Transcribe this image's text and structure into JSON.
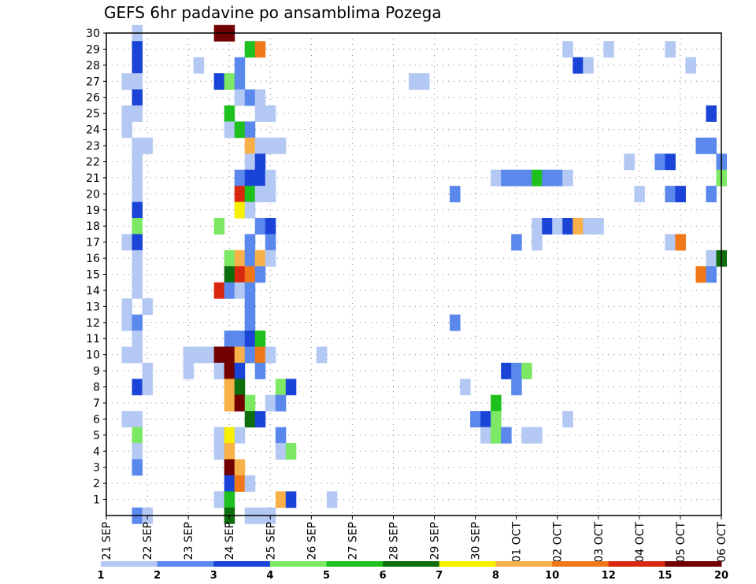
{
  "chart_data": {
    "type": "heatmap",
    "title": "GEFS 6hr padavine po ansamblima Pozega",
    "xlabel": "",
    "ylabel": "",
    "x_ticks": [
      "21 SEP",
      "22 SEP",
      "23 SEP",
      "24 SEP",
      "25 SEP",
      "26 SEP",
      "27 SEP",
      "28 SEP",
      "29 SEP",
      "30 SEP",
      "01 OCT",
      "02 OCT",
      "03 OCT",
      "04 OCT",
      "05 OCT",
      "06 OCT"
    ],
    "y_ticks": [
      1,
      2,
      3,
      4,
      5,
      6,
      7,
      8,
      9,
      10,
      11,
      12,
      13,
      14,
      15,
      16,
      17,
      18,
      19,
      20,
      21,
      22,
      23,
      24,
      25,
      26,
      27,
      28,
      29,
      30
    ],
    "x_unit": "6-hour step (4 steps per day, step 0 = 21 SEP)",
    "x_range": [
      0,
      60
    ],
    "y_range": [
      0,
      30
    ],
    "grid": "dotted",
    "legend": {
      "placement": "bottom",
      "thresholds": [
        "1",
        "2",
        "3",
        "4",
        "5",
        "6",
        "7",
        "8",
        "10",
        "12",
        "15",
        "20"
      ],
      "colors": [
        "#b4c8f4",
        "#5a88ec",
        "#1a44d8",
        "#7ce864",
        "#1ec01e",
        "#0c6e0c",
        "#f8f000",
        "#f8b048",
        "#f07818",
        "#d82810",
        "#720000"
      ]
    },
    "cells": [
      {
        "s": 3,
        "m": 30,
        "c": 0
      },
      {
        "s": 11,
        "m": 30,
        "c": 10
      },
      {
        "s": 12,
        "m": 30,
        "c": 10
      },
      {
        "s": 3,
        "m": 29,
        "c": 2
      },
      {
        "s": 14,
        "m": 29,
        "c": 4
      },
      {
        "s": 15,
        "m": 29,
        "c": 8
      },
      {
        "s": 45,
        "m": 29,
        "c": 0
      },
      {
        "s": 49,
        "m": 29,
        "c": 0
      },
      {
        "s": 55,
        "m": 29,
        "c": 0
      },
      {
        "s": 3,
        "m": 28,
        "c": 2
      },
      {
        "s": 9,
        "m": 28,
        "c": 0
      },
      {
        "s": 13,
        "m": 28,
        "c": 1
      },
      {
        "s": 46,
        "m": 28,
        "c": 2
      },
      {
        "s": 47,
        "m": 28,
        "c": 0
      },
      {
        "s": 57,
        "m": 28,
        "c": 0
      },
      {
        "s": 2,
        "m": 27,
        "c": 0
      },
      {
        "s": 3,
        "m": 27,
        "c": 0
      },
      {
        "s": 11,
        "m": 27,
        "c": 2
      },
      {
        "s": 12,
        "m": 27,
        "c": 3
      },
      {
        "s": 13,
        "m": 27,
        "c": 1
      },
      {
        "s": 30,
        "m": 27,
        "c": 0
      },
      {
        "s": 31,
        "m": 27,
        "c": 0
      },
      {
        "s": 3,
        "m": 26,
        "c": 2
      },
      {
        "s": 13,
        "m": 26,
        "c": 0
      },
      {
        "s": 14,
        "m": 26,
        "c": 1
      },
      {
        "s": 15,
        "m": 26,
        "c": 0
      },
      {
        "s": 2,
        "m": 25,
        "c": 0
      },
      {
        "s": 3,
        "m": 25,
        "c": 0
      },
      {
        "s": 12,
        "m": 25,
        "c": 4
      },
      {
        "s": 15,
        "m": 25,
        "c": 0
      },
      {
        "s": 16,
        "m": 25,
        "c": 0
      },
      {
        "s": 59,
        "m": 25,
        "c": 2
      },
      {
        "s": 2,
        "m": 24,
        "c": 0
      },
      {
        "s": 12,
        "m": 24,
        "c": 0
      },
      {
        "s": 13,
        "m": 24,
        "c": 4
      },
      {
        "s": 14,
        "m": 24,
        "c": 1
      },
      {
        "s": 3,
        "m": 23,
        "c": 0
      },
      {
        "s": 4,
        "m": 23,
        "c": 0
      },
      {
        "s": 14,
        "m": 23,
        "c": 7
      },
      {
        "s": 15,
        "m": 23,
        "c": 0
      },
      {
        "s": 16,
        "m": 23,
        "c": 0
      },
      {
        "s": 17,
        "m": 23,
        "c": 0
      },
      {
        "s": 58,
        "m": 23,
        "c": 1
      },
      {
        "s": 59,
        "m": 23,
        "c": 1
      },
      {
        "s": 3,
        "m": 22,
        "c": 0
      },
      {
        "s": 14,
        "m": 22,
        "c": 0
      },
      {
        "s": 15,
        "m": 22,
        "c": 2
      },
      {
        "s": 51,
        "m": 22,
        "c": 0
      },
      {
        "s": 54,
        "m": 22,
        "c": 1
      },
      {
        "s": 55,
        "m": 22,
        "c": 2
      },
      {
        "s": 60,
        "m": 22,
        "c": 1
      },
      {
        "s": 3,
        "m": 21,
        "c": 0
      },
      {
        "s": 13,
        "m": 21,
        "c": 1
      },
      {
        "s": 14,
        "m": 21,
        "c": 2
      },
      {
        "s": 15,
        "m": 21,
        "c": 2
      },
      {
        "s": 16,
        "m": 21,
        "c": 0
      },
      {
        "s": 38,
        "m": 21,
        "c": 0
      },
      {
        "s": 39,
        "m": 21,
        "c": 1
      },
      {
        "s": 40,
        "m": 21,
        "c": 1
      },
      {
        "s": 41,
        "m": 21,
        "c": 1
      },
      {
        "s": 42,
        "m": 21,
        "c": 4
      },
      {
        "s": 43,
        "m": 21,
        "c": 1
      },
      {
        "s": 44,
        "m": 21,
        "c": 1
      },
      {
        "s": 45,
        "m": 21,
        "c": 0
      },
      {
        "s": 60,
        "m": 21,
        "c": 3
      },
      {
        "s": 3,
        "m": 20,
        "c": 0
      },
      {
        "s": 13,
        "m": 20,
        "c": 9
      },
      {
        "s": 14,
        "m": 20,
        "c": 4
      },
      {
        "s": 15,
        "m": 20,
        "c": 0
      },
      {
        "s": 16,
        "m": 20,
        "c": 0
      },
      {
        "s": 34,
        "m": 20,
        "c": 1
      },
      {
        "s": 52,
        "m": 20,
        "c": 0
      },
      {
        "s": 55,
        "m": 20,
        "c": 1
      },
      {
        "s": 56,
        "m": 20,
        "c": 2
      },
      {
        "s": 59,
        "m": 20,
        "c": 1
      },
      {
        "s": 3,
        "m": 19,
        "c": 2
      },
      {
        "s": 13,
        "m": 19,
        "c": 6
      },
      {
        "s": 14,
        "m": 19,
        "c": 0
      },
      {
        "s": 3,
        "m": 18,
        "c": 3
      },
      {
        "s": 11,
        "m": 18,
        "c": 3
      },
      {
        "s": 15,
        "m": 18,
        "c": 1
      },
      {
        "s": 16,
        "m": 18,
        "c": 2
      },
      {
        "s": 42,
        "m": 18,
        "c": 0
      },
      {
        "s": 43,
        "m": 18,
        "c": 2
      },
      {
        "s": 44,
        "m": 18,
        "c": 0
      },
      {
        "s": 45,
        "m": 18,
        "c": 2
      },
      {
        "s": 46,
        "m": 18,
        "c": 7
      },
      {
        "s": 47,
        "m": 18,
        "c": 0
      },
      {
        "s": 48,
        "m": 18,
        "c": 0
      },
      {
        "s": 2,
        "m": 17,
        "c": 0
      },
      {
        "s": 3,
        "m": 17,
        "c": 2
      },
      {
        "s": 14,
        "m": 17,
        "c": 1
      },
      {
        "s": 16,
        "m": 17,
        "c": 1
      },
      {
        "s": 40,
        "m": 17,
        "c": 1
      },
      {
        "s": 42,
        "m": 17,
        "c": 0
      },
      {
        "s": 55,
        "m": 17,
        "c": 0
      },
      {
        "s": 56,
        "m": 17,
        "c": 8
      },
      {
        "s": 3,
        "m": 16,
        "c": 0
      },
      {
        "s": 12,
        "m": 16,
        "c": 3
      },
      {
        "s": 13,
        "m": 16,
        "c": 7
      },
      {
        "s": 14,
        "m": 16,
        "c": 1
      },
      {
        "s": 15,
        "m": 16,
        "c": 7
      },
      {
        "s": 16,
        "m": 16,
        "c": 0
      },
      {
        "s": 59,
        "m": 16,
        "c": 0
      },
      {
        "s": 60,
        "m": 16,
        "c": 5
      },
      {
        "s": 3,
        "m": 15,
        "c": 0
      },
      {
        "s": 12,
        "m": 15,
        "c": 5
      },
      {
        "s": 13,
        "m": 15,
        "c": 9
      },
      {
        "s": 14,
        "m": 15,
        "c": 8
      },
      {
        "s": 15,
        "m": 15,
        "c": 1
      },
      {
        "s": 58,
        "m": 15,
        "c": 8
      },
      {
        "s": 59,
        "m": 15,
        "c": 1
      },
      {
        "s": 3,
        "m": 14,
        "c": 0
      },
      {
        "s": 11,
        "m": 14,
        "c": 9
      },
      {
        "s": 12,
        "m": 14,
        "c": 1
      },
      {
        "s": 13,
        "m": 14,
        "c": 0
      },
      {
        "s": 14,
        "m": 14,
        "c": 1
      },
      {
        "s": 2,
        "m": 13,
        "c": 0
      },
      {
        "s": 4,
        "m": 13,
        "c": 0
      },
      {
        "s": 14,
        "m": 13,
        "c": 1
      },
      {
        "s": 2,
        "m": 12,
        "c": 0
      },
      {
        "s": 3,
        "m": 12,
        "c": 1
      },
      {
        "s": 14,
        "m": 12,
        "c": 1
      },
      {
        "s": 34,
        "m": 12,
        "c": 1
      },
      {
        "s": 3,
        "m": 11,
        "c": 0
      },
      {
        "s": 12,
        "m": 11,
        "c": 1
      },
      {
        "s": 13,
        "m": 11,
        "c": 1
      },
      {
        "s": 14,
        "m": 11,
        "c": 2
      },
      {
        "s": 15,
        "m": 11,
        "c": 4
      },
      {
        "s": 2,
        "m": 10,
        "c": 0
      },
      {
        "s": 3,
        "m": 10,
        "c": 0
      },
      {
        "s": 8,
        "m": 10,
        "c": 0
      },
      {
        "s": 9,
        "m": 10,
        "c": 0
      },
      {
        "s": 10,
        "m": 10,
        "c": 0
      },
      {
        "s": 11,
        "m": 10,
        "c": 10
      },
      {
        "s": 12,
        "m": 10,
        "c": 10
      },
      {
        "s": 13,
        "m": 10,
        "c": 7
      },
      {
        "s": 14,
        "m": 10,
        "c": 1
      },
      {
        "s": 15,
        "m": 10,
        "c": 8
      },
      {
        "s": 16,
        "m": 10,
        "c": 0
      },
      {
        "s": 21,
        "m": 10,
        "c": 0
      },
      {
        "s": 4,
        "m": 9,
        "c": 0
      },
      {
        "s": 8,
        "m": 9,
        "c": 0
      },
      {
        "s": 11,
        "m": 9,
        "c": 0
      },
      {
        "s": 12,
        "m": 9,
        "c": 10
      },
      {
        "s": 13,
        "m": 9,
        "c": 2
      },
      {
        "s": 15,
        "m": 9,
        "c": 1
      },
      {
        "s": 39,
        "m": 9,
        "c": 2
      },
      {
        "s": 40,
        "m": 9,
        "c": 1
      },
      {
        "s": 41,
        "m": 9,
        "c": 3
      },
      {
        "s": 3,
        "m": 8,
        "c": 2
      },
      {
        "s": 4,
        "m": 8,
        "c": 0
      },
      {
        "s": 12,
        "m": 8,
        "c": 7
      },
      {
        "s": 13,
        "m": 8,
        "c": 5
      },
      {
        "s": 17,
        "m": 8,
        "c": 3
      },
      {
        "s": 18,
        "m": 8,
        "c": 2
      },
      {
        "s": 35,
        "m": 8,
        "c": 0
      },
      {
        "s": 40,
        "m": 8,
        "c": 1
      },
      {
        "s": 12,
        "m": 7,
        "c": 7
      },
      {
        "s": 13,
        "m": 7,
        "c": 10
      },
      {
        "s": 14,
        "m": 7,
        "c": 3
      },
      {
        "s": 16,
        "m": 7,
        "c": 0
      },
      {
        "s": 17,
        "m": 7,
        "c": 1
      },
      {
        "s": 38,
        "m": 7,
        "c": 4
      },
      {
        "s": 2,
        "m": 6,
        "c": 0
      },
      {
        "s": 3,
        "m": 6,
        "c": 0
      },
      {
        "s": 14,
        "m": 6,
        "c": 5
      },
      {
        "s": 15,
        "m": 6,
        "c": 2
      },
      {
        "s": 36,
        "m": 6,
        "c": 1
      },
      {
        "s": 37,
        "m": 6,
        "c": 2
      },
      {
        "s": 38,
        "m": 6,
        "c": 3
      },
      {
        "s": 45,
        "m": 6,
        "c": 0
      },
      {
        "s": 3,
        "m": 5,
        "c": 3
      },
      {
        "s": 11,
        "m": 5,
        "c": 0
      },
      {
        "s": 12,
        "m": 5,
        "c": 6
      },
      {
        "s": 13,
        "m": 5,
        "c": 0
      },
      {
        "s": 17,
        "m": 5,
        "c": 1
      },
      {
        "s": 37,
        "m": 5,
        "c": 0
      },
      {
        "s": 38,
        "m": 5,
        "c": 3
      },
      {
        "s": 39,
        "m": 5,
        "c": 1
      },
      {
        "s": 41,
        "m": 5,
        "c": 0
      },
      {
        "s": 42,
        "m": 5,
        "c": 0
      },
      {
        "s": 3,
        "m": 4,
        "c": 0
      },
      {
        "s": 11,
        "m": 4,
        "c": 0
      },
      {
        "s": 12,
        "m": 4,
        "c": 7
      },
      {
        "s": 17,
        "m": 4,
        "c": 0
      },
      {
        "s": 18,
        "m": 4,
        "c": 3
      },
      {
        "s": 3,
        "m": 3,
        "c": 1
      },
      {
        "s": 12,
        "m": 3,
        "c": 10
      },
      {
        "s": 13,
        "m": 3,
        "c": 7
      },
      {
        "s": 12,
        "m": 2,
        "c": 2
      },
      {
        "s": 13,
        "m": 2,
        "c": 8
      },
      {
        "s": 14,
        "m": 2,
        "c": 0
      },
      {
        "s": 11,
        "m": 1,
        "c": 0
      },
      {
        "s": 12,
        "m": 1,
        "c": 4
      },
      {
        "s": 17,
        "m": 1,
        "c": 7
      },
      {
        "s": 18,
        "m": 1,
        "c": 2
      },
      {
        "s": 22,
        "m": 1,
        "c": 0
      },
      {
        "s": 3,
        "m": 0,
        "c": 1
      },
      {
        "s": 4,
        "m": 0,
        "c": 0
      },
      {
        "s": 12,
        "m": 0,
        "c": 5
      },
      {
        "s": 14,
        "m": 0,
        "c": 0
      },
      {
        "s": 15,
        "m": 0,
        "c": 0
      },
      {
        "s": 16,
        "m": 0,
        "c": 0
      }
    ]
  }
}
